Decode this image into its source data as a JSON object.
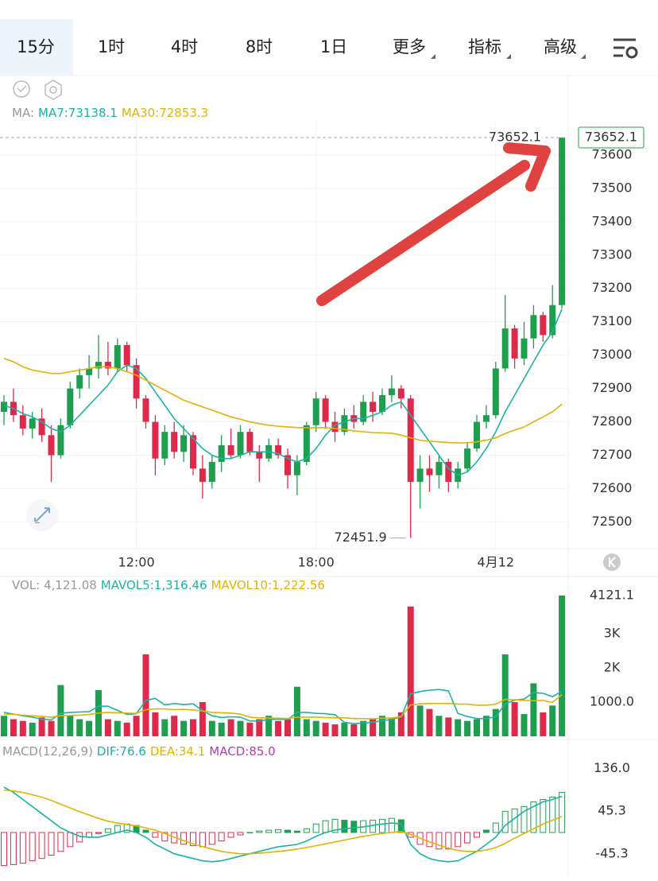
{
  "tabs": {
    "items": [
      "15分",
      "1时",
      "4时",
      "8时",
      "1日",
      "更多",
      "指标",
      "高级"
    ],
    "active": 0
  },
  "chart_data": [
    {
      "type": "candlestick",
      "title": "MA:",
      "up_color": "#1f9e4f",
      "down_color": "#e0294a",
      "categories": [
        null,
        null,
        null,
        null,
        null,
        null,
        null,
        null,
        null,
        null,
        null,
        null,
        null,
        null,
        "12:00",
        null,
        null,
        null,
        null,
        null,
        null,
        null,
        null,
        null,
        null,
        null,
        null,
        null,
        null,
        null,
        null,
        null,
        null,
        "18:00",
        null,
        null,
        null,
        null,
        null,
        null,
        null,
        null,
        null,
        null,
        null,
        null,
        null,
        null,
        null,
        null,
        null,
        null,
        "4月12",
        null,
        null,
        null,
        null,
        null,
        null,
        null
      ],
      "values": [
        [
          72830,
          72880,
          72790,
          72860
        ],
        [
          72860,
          72900,
          72800,
          72820
        ],
        [
          72820,
          72850,
          72760,
          72780
        ],
        [
          72780,
          72830,
          72750,
          72810
        ],
        [
          72810,
          72840,
          72740,
          72760
        ],
        [
          72760,
          72790,
          72620,
          72700
        ],
        [
          72700,
          72810,
          72690,
          72790
        ],
        [
          72790,
          72920,
          72780,
          72900
        ],
        [
          72900,
          72960,
          72870,
          72940
        ],
        [
          72940,
          73000,
          72900,
          72960
        ],
        [
          72960,
          73060,
          72930,
          72980
        ],
        [
          72980,
          73040,
          72940,
          72960
        ],
        [
          72960,
          73050,
          72950,
          73030
        ],
        [
          73030,
          73040,
          72950,
          72970
        ],
        [
          72970,
          72990,
          72840,
          72870
        ],
        [
          72870,
          72880,
          72780,
          72800
        ],
        [
          72800,
          72820,
          72640,
          72690
        ],
        [
          72690,
          72790,
          72670,
          72770
        ],
        [
          72770,
          72800,
          72690,
          72710
        ],
        [
          72710,
          72790,
          72680,
          72760
        ],
        [
          72760,
          72770,
          72640,
          72660
        ],
        [
          72660,
          72700,
          72570,
          72620
        ],
        [
          72620,
          72700,
          72600,
          72680
        ],
        [
          72680,
          72760,
          72650,
          72730
        ],
        [
          72730,
          72780,
          72690,
          72700
        ],
        [
          72700,
          72790,
          72690,
          72770
        ],
        [
          72770,
          72780,
          72700,
          72710
        ],
        [
          72710,
          72730,
          72620,
          72690
        ],
        [
          72690,
          72750,
          72680,
          72730
        ],
        [
          72730,
          72750,
          72690,
          72700
        ],
        [
          72700,
          72720,
          72600,
          72640
        ],
        [
          72640,
          72700,
          72580,
          72680
        ],
        [
          72680,
          72800,
          72670,
          72790
        ],
        [
          72790,
          72890,
          72770,
          72870
        ],
        [
          72870,
          72880,
          72780,
          72800
        ],
        [
          72800,
          72830,
          72740,
          72770
        ],
        [
          72770,
          72840,
          72760,
          72820
        ],
        [
          72820,
          72850,
          72780,
          72800
        ],
        [
          72800,
          72880,
          72790,
          72860
        ],
        [
          72860,
          72890,
          72800,
          72830
        ],
        [
          72830,
          72900,
          72820,
          72880
        ],
        [
          72880,
          72940,
          72860,
          72900
        ],
        [
          72900,
          72910,
          72840,
          72870
        ],
        [
          72870,
          72880,
          72451.9,
          72620
        ],
        [
          72620,
          72700,
          72540,
          72660
        ],
        [
          72660,
          72700,
          72590,
          72640
        ],
        [
          72640,
          72700,
          72600,
          72680
        ],
        [
          72680,
          72690,
          72590,
          72620
        ],
        [
          72620,
          72680,
          72600,
          72660
        ],
        [
          72660,
          72740,
          72650,
          72720
        ],
        [
          72720,
          72820,
          72710,
          72800
        ],
        [
          72800,
          72850,
          72780,
          72820
        ],
        [
          72820,
          72980,
          72810,
          72960
        ],
        [
          72960,
          73180,
          72950,
          73080
        ],
        [
          73080,
          73090,
          72960,
          72990
        ],
        [
          72990,
          73100,
          72970,
          73050
        ],
        [
          73050,
          73150,
          73020,
          73120
        ],
        [
          73120,
          73130,
          73040,
          73060
        ],
        [
          73060,
          73210,
          73050,
          73150
        ],
        [
          73150,
          73652.1,
          73140,
          73652.1
        ]
      ],
      "series": [
        {
          "name": "MA7:73138.1",
          "color": "#1bb3a6",
          "values": [
            72850,
            72840,
            72825,
            72815,
            72800,
            72780,
            72770,
            72790,
            72820,
            72850,
            72880,
            72910,
            72950,
            72970,
            72960,
            72930,
            72890,
            72850,
            72810,
            72780,
            72750,
            72720,
            72700,
            72690,
            72690,
            72700,
            72710,
            72710,
            72710,
            72705,
            72690,
            72680,
            72690,
            72720,
            72760,
            72790,
            72800,
            72810,
            72810,
            72820,
            72830,
            72850,
            72860,
            72820,
            72780,
            72740,
            72700,
            72660,
            72640,
            72650,
            72680,
            72720,
            72770,
            72830,
            72880,
            72930,
            72980,
            73030,
            73070,
            73138.1
          ]
        },
        {
          "name": "MA30:72853.3",
          "color": "#e2b300",
          "values": [
            72990,
            72980,
            72965,
            72955,
            72950,
            72945,
            72945,
            72950,
            72955,
            72960,
            72965,
            72965,
            72960,
            72950,
            72940,
            72925,
            72910,
            72895,
            72880,
            72865,
            72855,
            72845,
            72835,
            72825,
            72815,
            72808,
            72800,
            72795,
            72790,
            72787,
            72785,
            72783,
            72782,
            72782,
            72783,
            72780,
            72777,
            72773,
            72770,
            72768,
            72767,
            72766,
            72760,
            72752,
            72745,
            72742,
            72740,
            72738,
            72737,
            72737,
            72740,
            72745,
            72752,
            72765,
            72775,
            72785,
            72800,
            72815,
            72830,
            72853.3
          ]
        }
      ],
      "ylim": [
        72420,
        73707
      ],
      "yticks": [
        72500,
        72600,
        72700,
        72800,
        72900,
        73000,
        73100,
        73200,
        73300,
        73400,
        73500,
        73600
      ],
      "grid": true
    },
    {
      "type": "bar",
      "series": [
        {
          "name": "VOL: 4,121.08",
          "type": "bar",
          "values": [
            600,
            500,
            450,
            400,
            550,
            450,
            1500,
            600,
            500,
            450,
            1350,
            500,
            450,
            400,
            600,
            2400,
            700,
            500,
            600,
            450,
            500,
            1000,
            450,
            400,
            500,
            450,
            400,
            500,
            600,
            450,
            500,
            1450,
            500,
            450,
            400,
            350,
            400,
            350,
            450,
            500,
            600,
            550,
            700,
            3800,
            900,
            800,
            600,
            550,
            500,
            450,
            500,
            600,
            800,
            2400,
            1000,
            650,
            1550,
            700,
            900,
            4121.1
          ]
        },
        {
          "name": "MAVOL5:1,316.46",
          "color": "#1bb3a6",
          "values": [
            700,
            650,
            600,
            560,
            500,
            480,
            670,
            700,
            710,
            720,
            880,
            880,
            760,
            640,
            660,
            1050,
            1110,
            920,
            960,
            930,
            950,
            750,
            600,
            550,
            570,
            560,
            450,
            450,
            490,
            500,
            490,
            700,
            700,
            670,
            660,
            630,
            410,
            370,
            390,
            410,
            460,
            490,
            570,
            1240,
            1310,
            1350,
            1370,
            1330,
            670,
            580,
            520,
            520,
            570,
            950,
            1060,
            1090,
            1280,
            1260,
            1160,
            1316.46
          ]
        },
        {
          "name": "MAVOL10:1,222.56",
          "color": "#e2b300",
          "values": [
            650,
            640,
            620,
            600,
            580,
            560,
            600,
            610,
            620,
            640,
            680,
            700,
            690,
            680,
            670,
            780,
            800,
            800,
            780,
            790,
            770,
            740,
            700,
            690,
            680,
            650,
            560,
            540,
            530,
            530,
            520,
            560,
            560,
            560,
            550,
            540,
            540,
            520,
            520,
            510,
            530,
            530,
            580,
            920,
            950,
            960,
            960,
            960,
            940,
            940,
            910,
            910,
            940,
            1080,
            1070,
            1050,
            1040,
            1050,
            990,
            1222.56
          ]
        }
      ],
      "ylim": [
        0,
        4330
      ],
      "yticks": [
        {
          "value": 1000,
          "label": "1000.0"
        },
        {
          "value": 2000,
          "label": "2K"
        },
        {
          "value": 3000,
          "label": "3K"
        }
      ],
      "last_label_color": "#d9a400"
    },
    {
      "type": "macd",
      "title": "MACD(12,26,9)",
      "up_color": "#1f9e4f",
      "down_color": "#e0294a",
      "series": [
        {
          "name": "DIF:76.6",
          "color": "#1bb3a6",
          "values": [
            96,
            85,
            70,
            55,
            40,
            25,
            10,
            0,
            -8,
            -10,
            -10,
            -5,
            0,
            5,
            0,
            -10,
            -25,
            -35,
            -45,
            -50,
            -55,
            -60,
            -62,
            -60,
            -55,
            -50,
            -45,
            -40,
            -35,
            -30,
            -28,
            -25,
            -18,
            -8,
            0,
            5,
            8,
            10,
            12,
            15,
            18,
            20,
            18,
            -25,
            -45,
            -55,
            -60,
            -62,
            -60,
            -50,
            -40,
            -25,
            -10,
            15,
            30,
            45,
            55,
            65,
            70,
            76.6
          ]
        },
        {
          "name": "DEA:34.1",
          "color": "#e2b300",
          "values": [
            90,
            88,
            85,
            80,
            75,
            68,
            60,
            52,
            44,
            37,
            30,
            24,
            20,
            17,
            14,
            10,
            5,
            -2,
            -10,
            -17,
            -24,
            -30,
            -35,
            -40,
            -43,
            -45,
            -45,
            -44,
            -42,
            -40,
            -38,
            -35,
            -32,
            -28,
            -24,
            -20,
            -16,
            -12,
            -8,
            -5,
            -2,
            0,
            2,
            -4,
            -12,
            -20,
            -27,
            -33,
            -38,
            -40,
            -40,
            -37,
            -32,
            -23,
            -12,
            -2,
            8,
            18,
            26,
            34.1
          ]
        },
        {
          "name": "MACD:85.0",
          "type": "bar",
          "color": "#b13fb0",
          "values": [
            -70,
            -68,
            -65,
            -60,
            -55,
            -48,
            -40,
            -30,
            -20,
            -10,
            -2,
            8,
            15,
            18,
            15,
            5,
            -10,
            -18,
            -22,
            -25,
            -28,
            -30,
            -25,
            -18,
            -10,
            -5,
            0,
            3,
            5,
            6,
            5,
            3,
            8,
            18,
            25,
            28,
            26,
            24,
            25,
            26,
            28,
            30,
            27,
            -10,
            -25,
            -30,
            -35,
            -35,
            -30,
            -22,
            -10,
            5,
            20,
            45,
            50,
            55,
            65,
            70,
            75,
            85.0
          ]
        }
      ],
      "ylim": [
        -96,
        155
      ],
      "yticks": [
        -45.3,
        45.3,
        {
          "value": 136,
          "label": "136.0"
        }
      ]
    }
  ]
}
